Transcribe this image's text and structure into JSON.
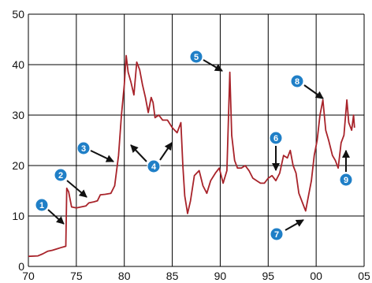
{
  "chart_data": {
    "type": "line",
    "title": "",
    "xlabel": "",
    "ylabel": "",
    "xlim": [
      1970,
      2005
    ],
    "ylim": [
      0,
      50
    ],
    "grid": true,
    "x_ticks": [
      1970,
      1975,
      1980,
      1985,
      1990,
      1995,
      2000,
      2005
    ],
    "x_tick_labels": [
      "70",
      "75",
      "80",
      "85",
      "90",
      "95",
      "00",
      "05"
    ],
    "y_ticks": [
      0,
      10,
      20,
      30,
      40,
      50
    ],
    "y_tick_labels": [
      "0",
      "10",
      "20",
      "30",
      "40",
      "50"
    ],
    "colors": {
      "line": "#a8232a",
      "grid": "#000000",
      "badge": "#1f7fc7",
      "arrow": "#111111"
    },
    "series": [
      {
        "name": "",
        "points": [
          [
            1970.0,
            2.0
          ],
          [
            1971.0,
            2.1
          ],
          [
            1971.5,
            2.5
          ],
          [
            1972.0,
            3.0
          ],
          [
            1972.5,
            3.2
          ],
          [
            1973.0,
            3.5
          ],
          [
            1973.5,
            3.8
          ],
          [
            1973.9,
            4.0
          ],
          [
            1974.0,
            15.5
          ],
          [
            1974.2,
            14.8
          ],
          [
            1974.5,
            11.8
          ],
          [
            1975.0,
            11.6
          ],
          [
            1975.5,
            11.8
          ],
          [
            1976.0,
            12.0
          ],
          [
            1976.3,
            12.6
          ],
          [
            1976.8,
            12.8
          ],
          [
            1977.2,
            13.0
          ],
          [
            1977.5,
            14.2
          ],
          [
            1978.0,
            14.3
          ],
          [
            1978.6,
            14.5
          ],
          [
            1979.0,
            16.0
          ],
          [
            1979.4,
            22.0
          ],
          [
            1979.7,
            30.0
          ],
          [
            1980.0,
            36.0
          ],
          [
            1980.2,
            41.8
          ],
          [
            1980.4,
            38.5
          ],
          [
            1980.7,
            36.5
          ],
          [
            1981.0,
            34.0
          ],
          [
            1981.3,
            40.5
          ],
          [
            1981.6,
            39.0
          ],
          [
            1981.9,
            36.0
          ],
          [
            1982.2,
            33.5
          ],
          [
            1982.5,
            30.5
          ],
          [
            1982.8,
            33.5
          ],
          [
            1983.0,
            32.5
          ],
          [
            1983.2,
            29.5
          ],
          [
            1983.6,
            30.0
          ],
          [
            1984.0,
            29.0
          ],
          [
            1984.5,
            29.0
          ],
          [
            1985.0,
            27.5
          ],
          [
            1985.5,
            26.5
          ],
          [
            1985.9,
            28.5
          ],
          [
            1986.1,
            20.0
          ],
          [
            1986.3,
            14.0
          ],
          [
            1986.6,
            10.5
          ],
          [
            1986.9,
            13.0
          ],
          [
            1987.3,
            18.0
          ],
          [
            1987.8,
            19.0
          ],
          [
            1988.2,
            16.0
          ],
          [
            1988.6,
            14.5
          ],
          [
            1989.0,
            17.0
          ],
          [
            1989.5,
            18.5
          ],
          [
            1989.9,
            19.5
          ],
          [
            1990.3,
            16.5
          ],
          [
            1990.7,
            19.0
          ],
          [
            1991.0,
            38.5
          ],
          [
            1991.2,
            26.0
          ],
          [
            1991.5,
            21.0
          ],
          [
            1991.8,
            19.5
          ],
          [
            1992.2,
            19.5
          ],
          [
            1992.6,
            20.0
          ],
          [
            1993.0,
            19.0
          ],
          [
            1993.4,
            17.5
          ],
          [
            1993.8,
            17.0
          ],
          [
            1994.2,
            16.5
          ],
          [
            1994.6,
            16.5
          ],
          [
            1995.0,
            17.5
          ],
          [
            1995.4,
            18.0
          ],
          [
            1995.8,
            17.0
          ],
          [
            1996.2,
            18.5
          ],
          [
            1996.6,
            22.0
          ],
          [
            1997.0,
            21.5
          ],
          [
            1997.3,
            23.0
          ],
          [
            1997.6,
            20.0
          ],
          [
            1997.9,
            18.5
          ],
          [
            1998.2,
            14.5
          ],
          [
            1998.6,
            12.5
          ],
          [
            1998.9,
            11.0
          ],
          [
            1999.2,
            14.0
          ],
          [
            1999.5,
            17.0
          ],
          [
            1999.8,
            22.0
          ],
          [
            2000.1,
            25.0
          ],
          [
            2000.4,
            30.0
          ],
          [
            2000.7,
            33.0
          ],
          [
            2001.0,
            27.0
          ],
          [
            2001.3,
            25.0
          ],
          [
            2001.7,
            22.0
          ],
          [
            2002.0,
            21.0
          ],
          [
            2002.3,
            19.5
          ],
          [
            2002.6,
            24.5
          ],
          [
            2002.9,
            26.0
          ],
          [
            2003.2,
            33.0
          ],
          [
            2003.4,
            28.5
          ],
          [
            2003.7,
            27.0
          ],
          [
            2003.9,
            30.0
          ],
          [
            2004.0,
            27.5
          ]
        ]
      }
    ],
    "annotations": [
      {
        "label": "1"
      },
      {
        "label": "2"
      },
      {
        "label": "3"
      },
      {
        "label": "4"
      },
      {
        "label": "5"
      },
      {
        "label": "6"
      },
      {
        "label": "7"
      },
      {
        "label": "8"
      },
      {
        "label": "9"
      }
    ]
  }
}
